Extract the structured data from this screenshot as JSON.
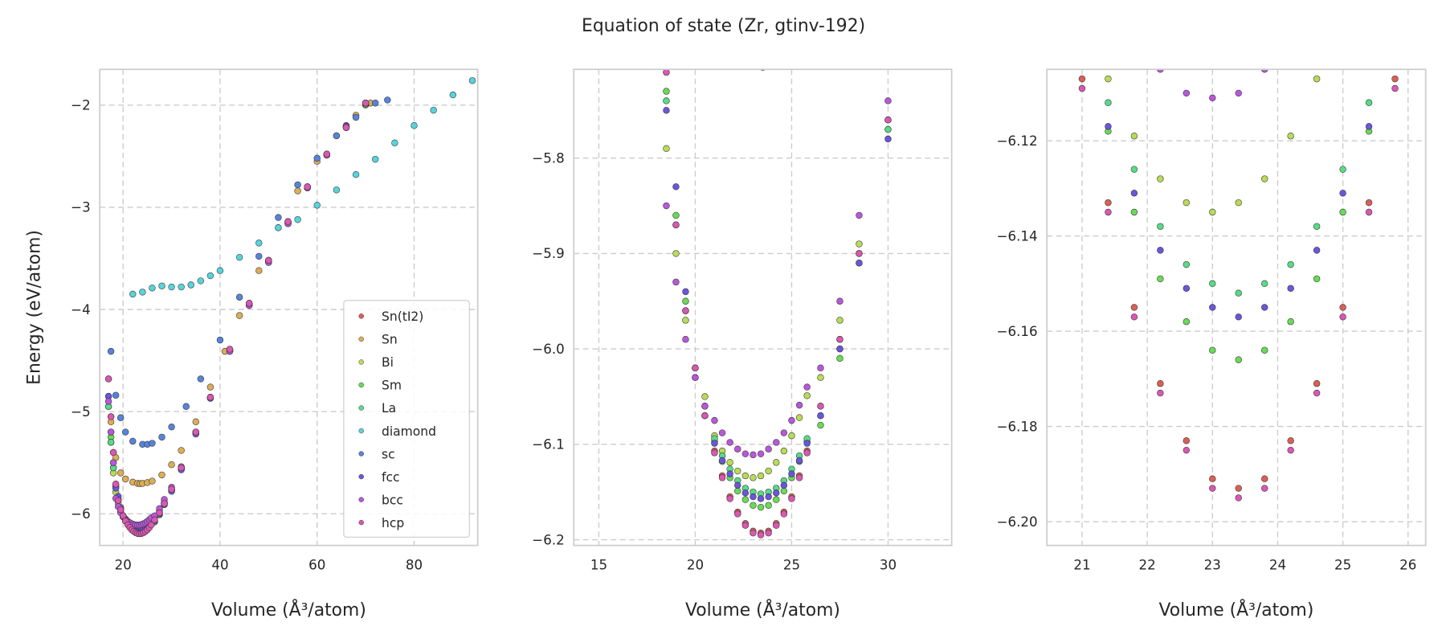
{
  "chart_data": {
    "type": "scatter",
    "title": "Equation of state (Zr, gtinv-192)",
    "marker_edge_color": "#333333",
    "grid": true,
    "series": [
      {
        "name": "Sn(tI2)",
        "color": "#db5f57",
        "x": [
          17,
          17.5,
          18,
          18.5,
          19,
          19.5,
          20,
          20.5,
          21.0,
          21.4,
          21.8,
          22.2,
          22.6,
          23.0,
          23.4,
          23.8,
          24.2,
          24.6,
          25.0,
          25.4,
          25.8,
          26.5,
          27.5,
          28.5,
          30,
          32,
          35,
          38,
          42,
          46,
          50,
          54,
          58,
          62,
          66,
          70
        ],
        "y": [
          -4.68,
          -5.05,
          -5.4,
          -5.71,
          -5.87,
          -5.96,
          -6.02,
          -6.07,
          -6.107,
          -6.133,
          -6.155,
          -6.171,
          -6.183,
          -6.191,
          -6.193,
          -6.191,
          -6.183,
          -6.171,
          -6.155,
          -6.133,
          -6.107,
          -6.06,
          -5.99,
          -5.9,
          -5.76,
          -5.55,
          -5.2,
          -4.86,
          -4.39,
          -3.94,
          -3.52,
          -3.14,
          -2.8,
          -2.48,
          -2.22,
          -1.98
        ]
      },
      {
        "name": "Sn",
        "color": "#dbae57",
        "x": [
          17.5,
          18.5,
          19.5,
          20.5,
          22,
          23,
          23.5,
          24,
          25,
          26,
          28,
          30,
          32,
          35,
          38,
          41,
          44,
          48,
          52,
          56,
          60,
          64,
          68,
          71
        ],
        "y": [
          -5.1,
          -5.45,
          -5.6,
          -5.66,
          -5.69,
          -5.703,
          -5.705,
          -5.703,
          -5.695,
          -5.68,
          -5.62,
          -5.52,
          -5.38,
          -5.1,
          -4.76,
          -4.41,
          -4.06,
          -3.62,
          -3.2,
          -2.84,
          -2.55,
          -2.3,
          -2.1,
          -1.98
        ]
      },
      {
        "name": "Bi",
        "color": "#b9db57",
        "x": [
          17,
          17.5,
          18,
          18.5,
          19,
          19.5,
          20,
          20.5,
          21.0,
          21.4,
          21.8,
          22.2,
          22.6,
          23.0,
          23.4,
          23.8,
          24.2,
          24.6,
          25.0,
          25.4,
          25.8,
          26.5,
          27.5,
          28.5,
          30,
          32,
          35,
          38,
          42,
          46,
          50,
          54,
          58,
          62,
          66,
          70
        ],
        "y": [
          -4.95,
          -5.3,
          -5.6,
          -5.79,
          -5.9,
          -5.97,
          -6.03,
          -6.05,
          -6.091,
          -6.107,
          -6.119,
          -6.128,
          -6.133,
          -6.135,
          -6.133,
          -6.128,
          -6.119,
          -6.107,
          -6.091,
          -6.072,
          -6.049,
          -6.03,
          -5.97,
          -5.89,
          -5.76,
          -5.56,
          -5.21,
          -4.87,
          -4.41,
          -3.96,
          -3.54,
          -3.16,
          -2.81,
          -2.49,
          -2.22,
          -2.0
        ]
      },
      {
        "name": "Sm",
        "color": "#69db57",
        "x": [
          17,
          17.5,
          18,
          18.5,
          19,
          19.5,
          20,
          20.5,
          21.0,
          21.4,
          21.8,
          22.2,
          22.6,
          23.0,
          23.4,
          23.8,
          24.2,
          24.6,
          25.0,
          25.4,
          25.8,
          26.5,
          27.5,
          28.5,
          30,
          32,
          35,
          38,
          42,
          46,
          50,
          54,
          58,
          62,
          66,
          70
        ],
        "y": [
          -4.85,
          -5.25,
          -5.55,
          -5.73,
          -5.86,
          -5.95,
          -6.02,
          -6.07,
          -6.097,
          -6.118,
          -6.135,
          -6.149,
          -6.158,
          -6.164,
          -6.166,
          -6.164,
          -6.158,
          -6.149,
          -6.135,
          -6.118,
          -6.097,
          -6.08,
          -6.01,
          -5.91,
          -5.77,
          -5.56,
          -5.21,
          -4.86,
          -4.4,
          -3.95,
          -3.53,
          -3.15,
          -2.8,
          -2.48,
          -2.21,
          -1.99
        ]
      },
      {
        "name": "La",
        "color": "#57db86",
        "x": [
          17,
          17.5,
          18,
          18.5,
          19,
          19.5,
          20,
          20.5,
          21.0,
          21.4,
          21.8,
          22.2,
          22.6,
          23.0,
          23.4,
          23.8,
          24.2,
          24.6,
          25.0,
          25.4,
          25.8,
          26.5,
          27.5,
          28.5,
          30,
          32,
          35,
          38,
          42,
          46,
          50,
          54,
          58,
          62,
          66,
          70
        ],
        "y": [
          -4.95,
          -5.3,
          -5.55,
          -5.74,
          -5.87,
          -5.96,
          -6.03,
          -6.06,
          -6.094,
          -6.112,
          -6.126,
          -6.138,
          -6.146,
          -6.15,
          -6.152,
          -6.15,
          -6.146,
          -6.138,
          -6.126,
          -6.112,
          -6.094,
          -6.07,
          -6.0,
          -5.9,
          -5.77,
          -5.56,
          -5.21,
          -4.86,
          -4.4,
          -3.95,
          -3.53,
          -3.15,
          -2.8,
          -2.48,
          -2.21,
          -1.99
        ]
      },
      {
        "name": "diamond",
        "color": "#57d3db",
        "x": [
          22,
          24,
          26,
          28,
          30,
          32,
          34,
          36,
          38,
          40,
          44,
          48,
          52,
          56,
          60,
          64,
          68,
          72,
          76,
          80,
          84,
          88,
          92
        ],
        "y": [
          -3.85,
          -3.83,
          -3.79,
          -3.77,
          -3.78,
          -3.78,
          -3.76,
          -3.72,
          -3.67,
          -3.62,
          -3.49,
          -3.35,
          -3.2,
          -3.12,
          -2.98,
          -2.83,
          -2.68,
          -2.53,
          -2.37,
          -2.2,
          -2.05,
          -1.9,
          -1.76
        ]
      },
      {
        "name": "sc",
        "color": "#5784db",
        "x": [
          17.5,
          18.5,
          19.5,
          20.5,
          22,
          24,
          25,
          26,
          28,
          30,
          33,
          36,
          40,
          44,
          48,
          52,
          56,
          60,
          64,
          68,
          72,
          74.5
        ],
        "y": [
          -4.41,
          -4.84,
          -5.06,
          -5.2,
          -5.29,
          -5.32,
          -5.32,
          -5.31,
          -5.25,
          -5.15,
          -4.95,
          -4.68,
          -4.3,
          -3.88,
          -3.48,
          -3.1,
          -2.78,
          -2.52,
          -2.3,
          -2.12,
          -1.98,
          -1.95
        ]
      },
      {
        "name": "fcc",
        "color": "#6957db",
        "x": [
          17,
          17.5,
          18,
          18.5,
          19,
          19.5,
          20,
          20.5,
          21.0,
          21.4,
          21.8,
          22.2,
          22.6,
          23.0,
          23.4,
          23.8,
          24.2,
          24.6,
          25.0,
          25.4,
          25.8,
          26.5,
          27.5,
          28.5,
          30,
          32,
          35,
          38,
          42,
          46,
          50,
          54,
          58,
          62,
          66,
          70
        ],
        "y": [
          -4.85,
          -5.2,
          -5.5,
          -5.75,
          -5.83,
          -5.94,
          -6.02,
          -6.06,
          -6.099,
          -6.117,
          -6.131,
          -6.143,
          -6.151,
          -6.155,
          -6.157,
          -6.155,
          -6.151,
          -6.143,
          -6.131,
          -6.117,
          -6.099,
          -6.07,
          -6.0,
          -5.91,
          -5.78,
          -5.57,
          -5.22,
          -4.87,
          -4.4,
          -3.95,
          -3.52,
          -3.14,
          -2.8,
          -2.48,
          -2.2,
          -1.98
        ]
      },
      {
        "name": "bcc",
        "color": "#b957db",
        "x": [
          17,
          17.5,
          18,
          18.5,
          19,
          19.5,
          20,
          20.5,
          21.0,
          21.4,
          21.8,
          22.2,
          22.6,
          23.0,
          23.4,
          23.8,
          24.2,
          24.6,
          25.0,
          25.4,
          25.8,
          26.5,
          27.5,
          28.5,
          30,
          32,
          35,
          38,
          42,
          46,
          50,
          54,
          58,
          62,
          66,
          70
        ],
        "y": [
          -4.9,
          -5.2,
          -5.5,
          -5.85,
          -5.93,
          -5.99,
          -6.03,
          -6.06,
          -6.075,
          -6.088,
          -6.098,
          -6.105,
          -6.11,
          -6.111,
          -6.11,
          -6.105,
          -6.098,
          -6.088,
          -6.075,
          -6.059,
          -6.04,
          -6.02,
          -5.95,
          -5.86,
          -5.74,
          -5.54,
          -5.2,
          -4.86,
          -4.41,
          -3.96,
          -3.54,
          -3.16,
          -2.81,
          -2.49,
          -2.21,
          -1.98
        ]
      },
      {
        "name": "hcp",
        "color": "#db57b2",
        "x": [
          17,
          17.5,
          18,
          18.5,
          19,
          19.5,
          20,
          20.5,
          21.0,
          21.4,
          21.8,
          22.2,
          22.6,
          23.0,
          23.4,
          23.8,
          24.2,
          24.6,
          25.0,
          25.4,
          25.8,
          26.5,
          27.5,
          28.5,
          30,
          32,
          35,
          38,
          42,
          46,
          50,
          54,
          58,
          62,
          66,
          70
        ],
        "y": [
          -4.68,
          -5.05,
          -5.4,
          -5.71,
          -5.87,
          -5.96,
          -6.02,
          -6.07,
          -6.109,
          -6.135,
          -6.157,
          -6.173,
          -6.185,
          -6.193,
          -6.195,
          -6.193,
          -6.185,
          -6.173,
          -6.157,
          -6.135,
          -6.109,
          -6.06,
          -5.99,
          -5.9,
          -5.76,
          -5.55,
          -5.2,
          -4.86,
          -4.39,
          -3.94,
          -3.52,
          -3.14,
          -2.8,
          -2.48,
          -2.22,
          -1.98
        ]
      }
    ],
    "panels": [
      {
        "xlabel": "Volume (Å³/atom)",
        "ylabel": "Energy (eV/atom)",
        "xlim": [
          15.2,
          93.1
        ],
        "ylim": [
          -6.31,
          -1.65
        ],
        "xticks": [
          20,
          40,
          60,
          80
        ],
        "xticklabels": [
          "20",
          "40",
          "60",
          "80"
        ],
        "yticks": [
          -6,
          -5,
          -4,
          -3,
          -2
        ],
        "yticklabels": [
          "−6",
          "−5",
          "−4",
          "−3",
          "−2"
        ],
        "legend": "lower-right"
      },
      {
        "xlabel": "Volume (Å³/atom)",
        "ylabel": "",
        "xlim": [
          13.7,
          33.3
        ],
        "ylim": [
          -6.206,
          -5.707
        ],
        "xticks": [
          15,
          20,
          25,
          30
        ],
        "xticklabels": [
          "15",
          "20",
          "25",
          "30"
        ],
        "yticks": [
          -6.2,
          -6.1,
          -6.0,
          -5.9,
          -5.8
        ],
        "yticklabels": [
          "−6.2",
          "−6.1",
          "−6.0",
          "−5.9",
          "−5.8"
        ]
      },
      {
        "xlabel": "Volume (Å³/atom)",
        "ylabel": "",
        "xlim": [
          20.46,
          26.27
        ],
        "ylim": [
          -6.205,
          -6.105
        ],
        "xticks": [
          21,
          22,
          23,
          24,
          25,
          26
        ],
        "xticklabels": [
          "21",
          "22",
          "23",
          "24",
          "25",
          "26"
        ],
        "yticks": [
          -6.2,
          -6.18,
          -6.16,
          -6.14,
          -6.12
        ],
        "yticklabels": [
          "−6.20",
          "−6.18",
          "−6.16",
          "−6.14",
          "−6.12"
        ]
      }
    ]
  }
}
